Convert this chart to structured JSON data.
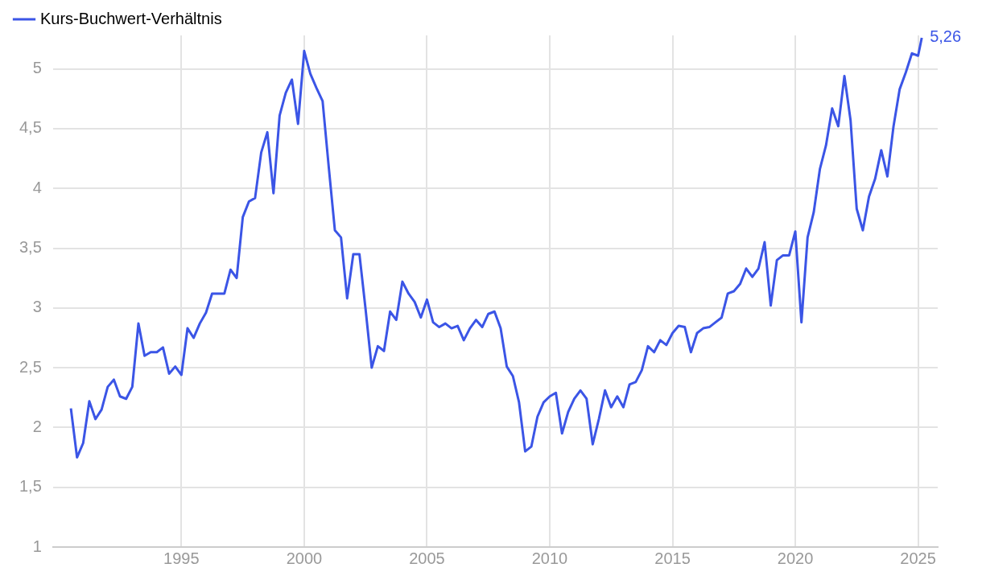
{
  "chart_data": {
    "type": "line",
    "legend": "top left",
    "grid": true,
    "xlim": [
      1989.77,
      2025.8
    ],
    "xticks": [
      1995,
      2000,
      2005,
      2010,
      2015,
      2020,
      2025
    ],
    "ylim": [
      1,
      5.28
    ],
    "yticks": [
      {
        "value": 1,
        "label": "1"
      },
      {
        "value": 1.5,
        "label": "1,5"
      },
      {
        "value": 2,
        "label": "2"
      },
      {
        "value": 2.5,
        "label": "2,5"
      },
      {
        "value": 3,
        "label": "3"
      },
      {
        "value": 3.5,
        "label": "3,5"
      },
      {
        "value": 4,
        "label": "4"
      },
      {
        "value": 4.5,
        "label": "4,5"
      },
      {
        "value": 5,
        "label": "5"
      }
    ],
    "annotations": [
      {
        "text": "5,26",
        "x": 2025.15,
        "y": 5.26
      }
    ],
    "x": [
      1990.5,
      1990.75,
      1991,
      1991.25,
      1991.5,
      1991.75,
      1992,
      1992.25,
      1992.5,
      1992.75,
      1993,
      1993.25,
      1993.5,
      1993.75,
      1994,
      1994.25,
      1994.5,
      1994.75,
      1995,
      1995.25,
      1995.5,
      1995.75,
      1996,
      1996.25,
      1996.5,
      1996.75,
      1997,
      1997.25,
      1997.5,
      1997.75,
      1998,
      1998.25,
      1998.5,
      1998.75,
      1999,
      1999.25,
      1999.5,
      1999.75,
      2000,
      2000.25,
      2000.5,
      2000.75,
      2001,
      2001.25,
      2001.5,
      2001.75,
      2002,
      2002.25,
      2002.5,
      2002.75,
      2003,
      2003.25,
      2003.5,
      2003.75,
      2004,
      2004.25,
      2004.5,
      2004.75,
      2005,
      2005.25,
      2005.5,
      2005.75,
      2006,
      2006.25,
      2006.5,
      2006.75,
      2007,
      2007.25,
      2007.5,
      2007.75,
      2008,
      2008.25,
      2008.5,
      2008.75,
      2009,
      2009.25,
      2009.5,
      2009.75,
      2010,
      2010.25,
      2010.5,
      2010.75,
      2011,
      2011.25,
      2011.5,
      2011.75,
      2012,
      2012.25,
      2012.5,
      2012.75,
      2013,
      2013.25,
      2013.5,
      2013.75,
      2014,
      2014.25,
      2014.5,
      2014.75,
      2015,
      2015.25,
      2015.5,
      2015.75,
      2016,
      2016.25,
      2016.5,
      2016.75,
      2017,
      2017.25,
      2017.5,
      2017.75,
      2018,
      2018.25,
      2018.5,
      2018.75,
      2019,
      2019.25,
      2019.5,
      2019.75,
      2020,
      2020.25,
      2020.5,
      2020.75,
      2021,
      2021.25,
      2021.5,
      2021.75,
      2022,
      2022.25,
      2022.5,
      2022.75,
      2023,
      2023.25,
      2023.5,
      2023.75,
      2024,
      2024.25,
      2024.5,
      2024.75,
      2025,
      2025.15
    ],
    "series": [
      {
        "name": "Kurs-Buchwert-Verhältnis",
        "color": "#3b55e6",
        "values": [
          2.16,
          1.75,
          1.87,
          2.22,
          2.07,
          2.15,
          2.34,
          2.4,
          2.26,
          2.24,
          2.34,
          2.87,
          2.6,
          2.63,
          2.63,
          2.67,
          2.45,
          2.51,
          2.44,
          2.83,
          2.75,
          2.87,
          2.96,
          3.12,
          3.12,
          3.12,
          3.32,
          3.25,
          3.76,
          3.89,
          3.92,
          4.3,
          4.47,
          3.96,
          4.61,
          4.8,
          4.91,
          4.54,
          5.15,
          4.96,
          4.84,
          4.73,
          4.18,
          3.65,
          3.59,
          3.08,
          3.45,
          3.45,
          2.99,
          2.5,
          2.68,
          2.64,
          2.97,
          2.9,
          3.22,
          3.12,
          3.05,
          2.92,
          3.07,
          2.88,
          2.84,
          2.87,
          2.83,
          2.85,
          2.73,
          2.83,
          2.9,
          2.84,
          2.95,
          2.97,
          2.83,
          2.51,
          2.43,
          2.21,
          1.8,
          1.84,
          2.09,
          2.21,
          2.26,
          2.29,
          1.95,
          2.13,
          2.24,
          2.31,
          2.24,
          1.86,
          2.07,
          2.31,
          2.17,
          2.26,
          2.17,
          2.36,
          2.38,
          2.48,
          2.68,
          2.63,
          2.73,
          2.69,
          2.79,
          2.85,
          2.84,
          2.63,
          2.79,
          2.83,
          2.84,
          2.88,
          2.92,
          3.12,
          3.14,
          3.2,
          3.33,
          3.26,
          3.33,
          3.55,
          3.02,
          3.4,
          3.44,
          3.44,
          3.64,
          2.88,
          3.59,
          3.8,
          4.16,
          4.36,
          4.67,
          4.52,
          4.94,
          4.57,
          3.83,
          3.65,
          3.93,
          4.08,
          4.32,
          4.1,
          4.52,
          4.83,
          4.97,
          5.13,
          5.11,
          5.26
        ]
      }
    ]
  }
}
